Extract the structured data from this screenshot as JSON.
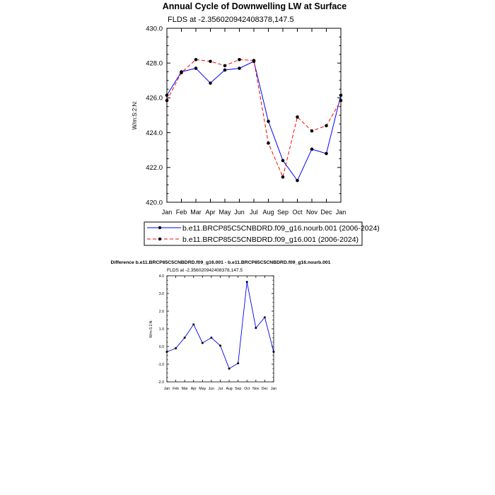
{
  "colors": {
    "series1": "#0000ff",
    "series2": "#ff0000",
    "marker": "#000000"
  },
  "chart_data": [
    {
      "type": "line",
      "title": "Annual Cycle of Downwelling LW at Surface",
      "subtitle": "FLDS at -2.356020942408378,147.5",
      "ylabel": "W/m:S:2:N:",
      "xlabel": "",
      "categories": [
        "Jan",
        "Feb",
        "Mar",
        "Apr",
        "May",
        "Jun",
        "Jul",
        "Aug",
        "Sep",
        "Oct",
        "Nov",
        "Dec",
        "Jan"
      ],
      "ylim": [
        420,
        430
      ],
      "yticks": [
        "420.0",
        "422.0",
        "424.0",
        "426.0",
        "428.0",
        "430.0"
      ],
      "ytick_values": [
        420,
        422,
        424,
        426,
        428,
        430
      ],
      "legend_position": "bottom",
      "series": [
        {
          "name": "b.e11.BRCP85C5CNBDRD.f09_g16.nourb.001 (2006-2024)",
          "style": "solid",
          "values": [
            426.15,
            427.5,
            427.7,
            426.85,
            427.6,
            427.7,
            428.1,
            424.65,
            422.4,
            421.25,
            423.05,
            422.8,
            426.15
          ]
        },
        {
          "name": "b.e11.BRCP85C5CNBDRD.f09_g16.001 (2006-2024)",
          "style": "dashed",
          "values": [
            425.85,
            427.45,
            428.2,
            428.1,
            427.85,
            428.2,
            428.15,
            423.4,
            421.45,
            424.9,
            424.1,
            424.4,
            425.85
          ]
        }
      ]
    },
    {
      "type": "line",
      "title": "Difference b.e11.BRCP85C5CNBDRD.f09_g16.001 - b.e11.BRCP85C5CNBDRD.f09_g16.nourb.001",
      "subtitle": "FLDS at -2.356020942408378,147.5",
      "ylabel": "W/m:S:2:N:",
      "xlabel": "",
      "categories": [
        "Jan",
        "Feb",
        "Mar",
        "Apr",
        "May",
        "Jun",
        "Jul",
        "Aug",
        "Sep",
        "Oct",
        "Nov",
        "Dec",
        "Jan"
      ],
      "ylim": [
        -2,
        4
      ],
      "yticks": [
        "-2.0",
        "-1.0",
        "0.0",
        "1.0",
        "2.0",
        "3.0",
        "4.0"
      ],
      "ytick_values": [
        -2,
        -1,
        0,
        1,
        2,
        3,
        4
      ],
      "series": [
        {
          "style": "solid",
          "values": [
            -0.3,
            -0.1,
            0.5,
            1.25,
            0.2,
            0.5,
            0.05,
            -1.25,
            -0.95,
            3.65,
            1.05,
            1.65,
            -0.3
          ]
        }
      ]
    }
  ]
}
